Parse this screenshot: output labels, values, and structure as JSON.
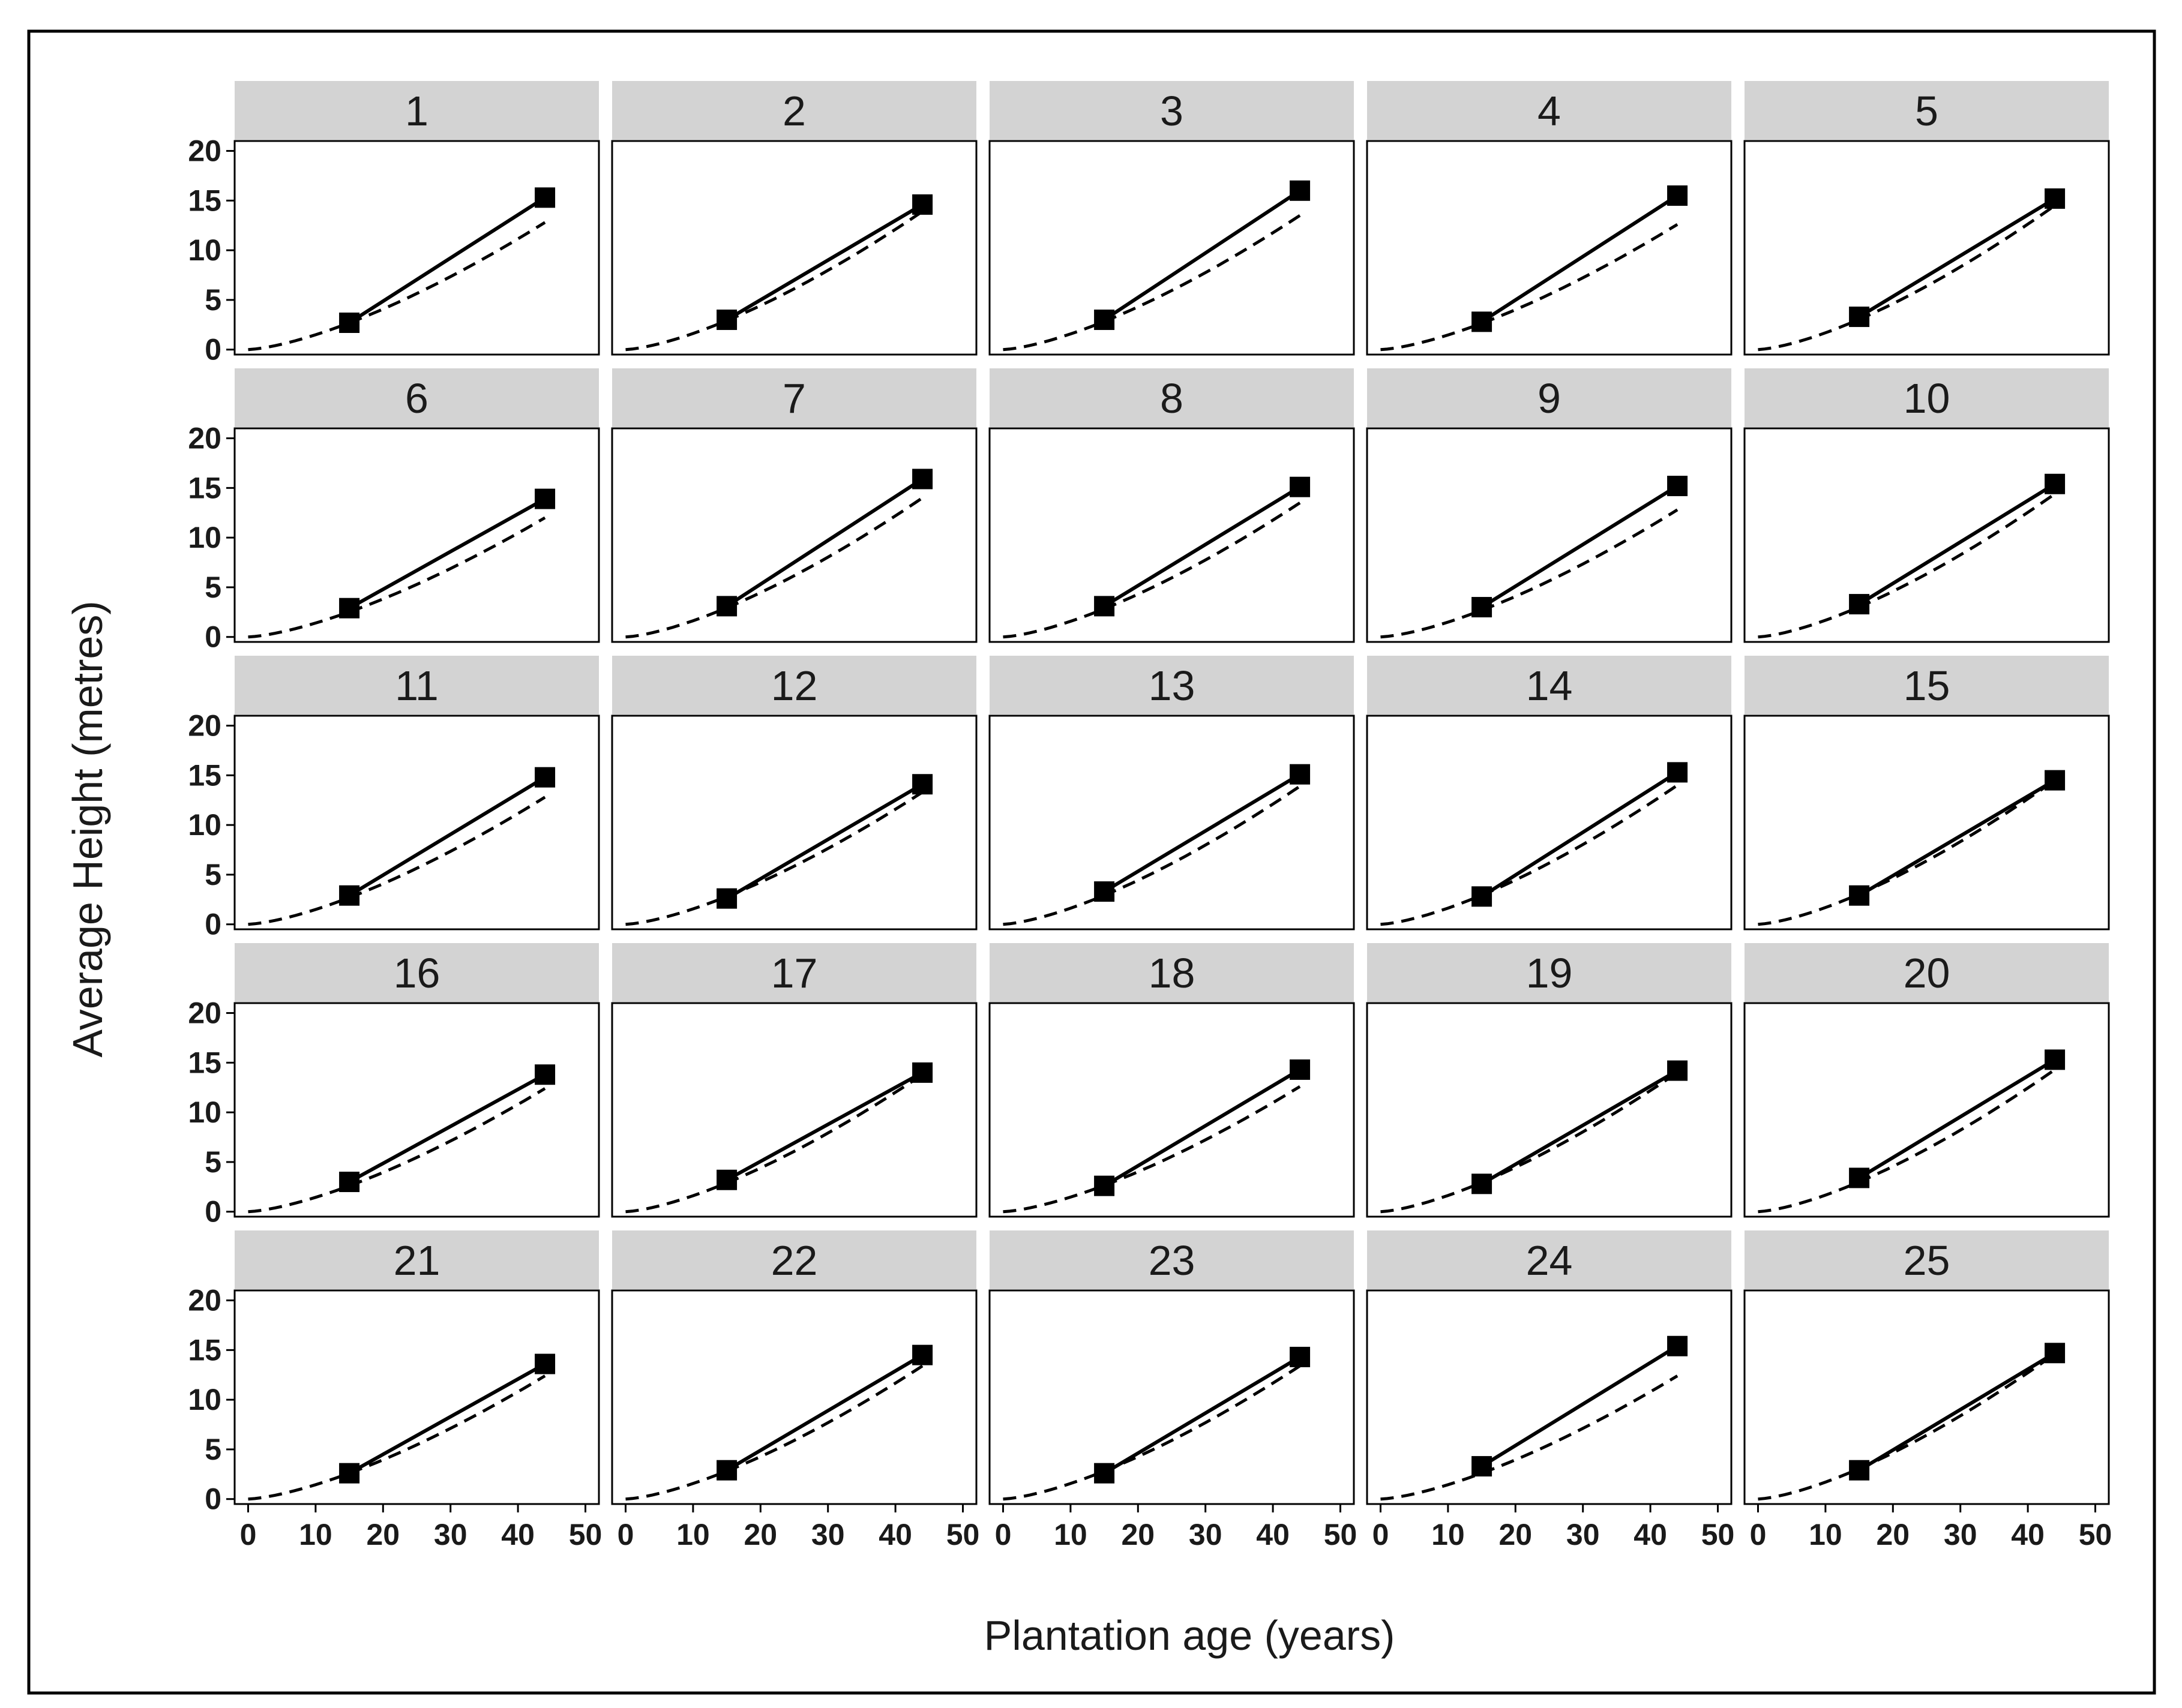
{
  "chart_data": {
    "type": "line",
    "layout": "facet-grid-5x5",
    "xlabel": "Plantation age (years)",
    "ylabel": "Average Height (metres)",
    "xlim": [
      -2,
      52
    ],
    "ylim": [
      -0.5,
      21
    ],
    "xticks": [
      0,
      10,
      20,
      30,
      40,
      50
    ],
    "yticks": [
      0,
      5,
      10,
      15,
      20
    ],
    "grid": false,
    "colors": {
      "lines": "#000000",
      "strip": "#d3d3d3",
      "border": "#000000",
      "points": "#000000"
    },
    "series_styles": {
      "observed": {
        "mark": "square-points-with-solid-line",
        "x": [
          15,
          44
        ]
      },
      "model": {
        "mark": "dashed-curve",
        "x_range": [
          0,
          44
        ]
      }
    },
    "facets": [
      {
        "panel": "1",
        "observed": [
          2.7,
          15.3
        ],
        "model_end": 12.8
      },
      {
        "panel": "2",
        "observed": [
          3.0,
          14.6
        ],
        "model_end": 13.9
      },
      {
        "panel": "3",
        "observed": [
          3.0,
          16.0
        ],
        "model_end": 13.5
      },
      {
        "panel": "4",
        "observed": [
          2.8,
          15.5
        ],
        "model_end": 12.6
      },
      {
        "panel": "5",
        "observed": [
          3.3,
          15.2
        ],
        "model_end": 14.5
      },
      {
        "panel": "6",
        "observed": [
          2.9,
          13.9
        ],
        "model_end": 12.0
      },
      {
        "panel": "7",
        "observed": [
          3.1,
          15.9
        ],
        "model_end": 14.0
      },
      {
        "panel": "8",
        "observed": [
          3.1,
          15.1
        ],
        "model_end": 13.5
      },
      {
        "panel": "9",
        "observed": [
          3.0,
          15.2
        ],
        "model_end": 12.8
      },
      {
        "panel": "10",
        "observed": [
          3.3,
          15.4
        ],
        "model_end": 14.4
      },
      {
        "panel": "11",
        "observed": [
          2.9,
          14.8
        ],
        "model_end": 12.8
      },
      {
        "panel": "12",
        "observed": [
          2.6,
          14.1
        ],
        "model_end": 13.3
      },
      {
        "panel": "13",
        "observed": [
          3.3,
          15.1
        ],
        "model_end": 13.9
      },
      {
        "panel": "14",
        "observed": [
          2.8,
          15.3
        ],
        "model_end": 14.0
      },
      {
        "panel": "15",
        "observed": [
          2.9,
          14.5
        ],
        "model_end": 14.5
      },
      {
        "panel": "16",
        "observed": [
          3.0,
          13.8
        ],
        "model_end": 12.4
      },
      {
        "panel": "17",
        "observed": [
          3.2,
          14.0
        ],
        "model_end": 13.8
      },
      {
        "panel": "18",
        "observed": [
          2.6,
          14.3
        ],
        "model_end": 12.6
      },
      {
        "panel": "19",
        "observed": [
          2.8,
          14.2
        ],
        "model_end": 14.0
      },
      {
        "panel": "20",
        "observed": [
          3.4,
          15.3
        ],
        "model_end": 14.3
      },
      {
        "panel": "21",
        "observed": [
          2.6,
          13.6
        ],
        "model_end": 12.4
      },
      {
        "panel": "22",
        "observed": [
          2.9,
          14.5
        ],
        "model_end": 13.4
      },
      {
        "panel": "23",
        "observed": [
          2.6,
          14.3
        ],
        "model_end": 13.4
      },
      {
        "panel": "24",
        "observed": [
          3.3,
          15.4
        ],
        "model_end": 12.4
      },
      {
        "panel": "25",
        "observed": [
          2.9,
          14.7
        ],
        "model_end": 14.6
      }
    ]
  }
}
